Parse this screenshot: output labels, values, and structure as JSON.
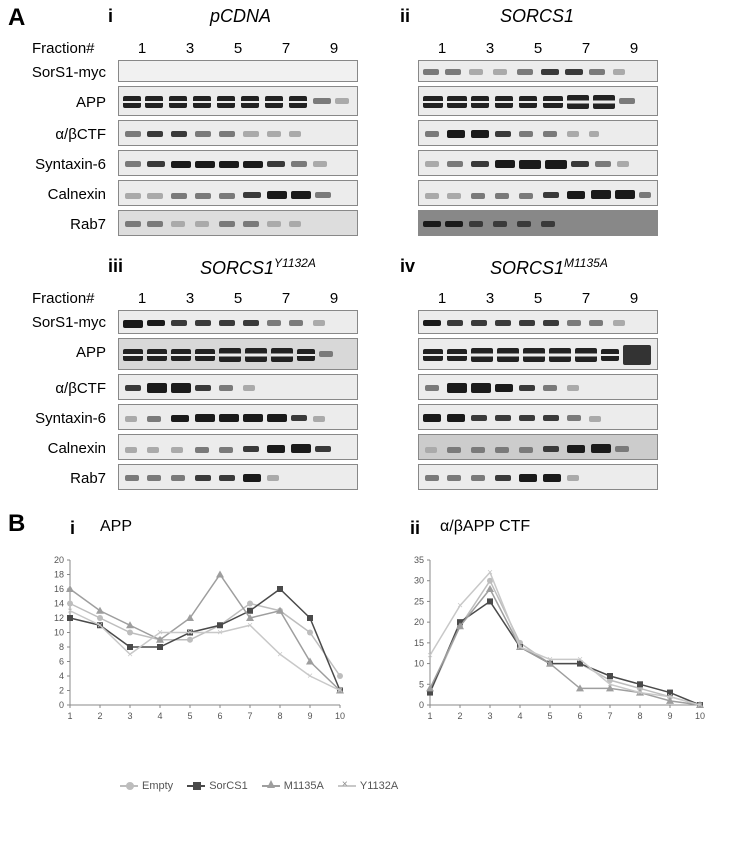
{
  "panelA_label": "A",
  "panelB_label": "B",
  "groups": {
    "i": {
      "sub": "i",
      "title": "pCDNA"
    },
    "ii": {
      "sub": "ii",
      "title": "SORCS1"
    },
    "iii": {
      "sub": "iii",
      "title": "SORCS1",
      "title_sup": "Y1132A"
    },
    "iv": {
      "sub": "iv",
      "title": "SORCS1",
      "title_sup": "M1135A"
    }
  },
  "fraction_label": "Fraction#",
  "fractions": [
    "1",
    "3",
    "5",
    "7",
    "9"
  ],
  "rows": [
    "SorS1-myc",
    "APP",
    "α/βCTF",
    "Syntaxin-6",
    "Calnexin",
    "Rab7"
  ],
  "chartA": {
    "sub": "i",
    "title": "APP",
    "x": [
      1,
      2,
      3,
      4,
      5,
      6,
      7,
      8,
      9,
      10
    ],
    "ylim": [
      0,
      20
    ],
    "yticks": [
      0,
      2,
      4,
      6,
      8,
      10,
      12,
      14,
      16,
      18,
      20
    ],
    "series": {
      "Empty": {
        "color": "#bdbdbd",
        "marker": "circle",
        "data": [
          14,
          12,
          10,
          9,
          9,
          11,
          14,
          13,
          10,
          4
        ]
      },
      "SorCS1": {
        "color": "#4a4a4a",
        "marker": "square",
        "data": [
          12,
          11,
          8,
          8,
          10,
          11,
          13,
          16,
          12,
          2
        ]
      },
      "M1135A": {
        "color": "#9e9e9e",
        "marker": "triangle",
        "data": [
          16,
          13,
          11,
          9,
          12,
          18,
          12,
          13,
          6,
          2
        ]
      },
      "Y1132A": {
        "color": "#c8c8c8",
        "marker": "x",
        "data": [
          13,
          11,
          7,
          10,
          10,
          10,
          11,
          7,
          4,
          2
        ]
      }
    }
  },
  "chartB": {
    "sub": "ii",
    "title": "α/βAPP CTF",
    "x": [
      1,
      2,
      3,
      4,
      5,
      6,
      7,
      8,
      9,
      10
    ],
    "ylim": [
      0,
      35
    ],
    "yticks": [
      0,
      5,
      10,
      15,
      20,
      25,
      30,
      35
    ],
    "series": {
      "Empty": {
        "color": "#bdbdbd",
        "marker": "circle",
        "data": [
          3,
          19,
          30,
          15,
          10,
          10,
          6,
          4,
          2,
          0
        ]
      },
      "SorCS1": {
        "color": "#4a4a4a",
        "marker": "square",
        "data": [
          3,
          20,
          25,
          14,
          10,
          10,
          7,
          5,
          3,
          0
        ]
      },
      "M1135A": {
        "color": "#9e9e9e",
        "marker": "triangle",
        "data": [
          4,
          19,
          28,
          14,
          10,
          4,
          4,
          3,
          1,
          0
        ]
      },
      "Y1132A": {
        "color": "#c8c8c8",
        "marker": "x",
        "data": [
          12,
          24,
          32,
          14,
          11,
          11,
          5,
          3,
          2,
          0
        ]
      }
    }
  },
  "legend_order": [
    "Empty",
    "SorCS1",
    "M1135A",
    "Y1132A"
  ],
  "colors": {
    "background": "#ffffff",
    "axis": "#888888",
    "text": "#000000"
  }
}
